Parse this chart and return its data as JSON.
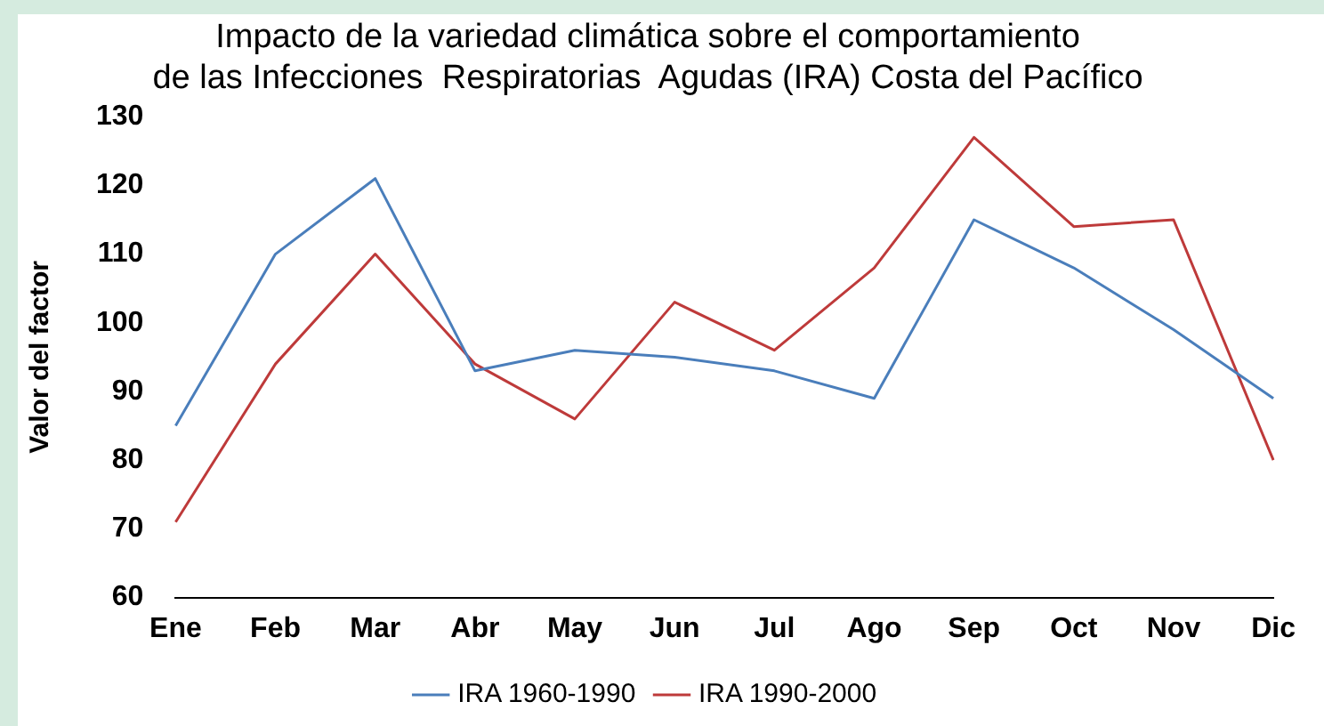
{
  "chart_data": {
    "type": "line",
    "title": [
      "Impacto de la variedad climática sobre el comportamiento",
      "de las Infecciones  Respiratorias  Agudas (IRA) Costa del Pacífico"
    ],
    "ylabel": "Valor del factor",
    "categories": [
      "Ene",
      "Feb",
      "Mar",
      "Abr",
      "May",
      "Jun",
      "Jul",
      "Ago",
      "Sep",
      "Oct",
      "Nov",
      "Dic"
    ],
    "series": [
      {
        "name": "IRA 1960-1990",
        "color": "#4a7ebb",
        "values": [
          85,
          110,
          121,
          93,
          96,
          95,
          93,
          89,
          115,
          108,
          99,
          89
        ]
      },
      {
        "name": "IRA 1990-2000",
        "color": "#be3a3a",
        "values": [
          71,
          94,
          110,
          94,
          86,
          103,
          96,
          108,
          127,
          114,
          115,
          80
        ]
      }
    ],
    "ylim": [
      60,
      130
    ],
    "yticks": [
      60,
      70,
      80,
      90,
      100,
      110,
      120,
      130
    ],
    "grid": false,
    "legend": "bottom",
    "marker": "none",
    "line_style": "solid"
  }
}
